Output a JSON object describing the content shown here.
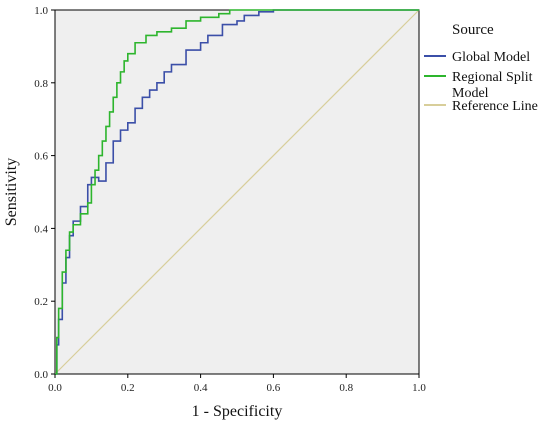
{
  "chart_data": {
    "type": "line",
    "title": "",
    "xlabel": "1 - Specificity",
    "ylabel": "Sensitivity",
    "xlim": [
      0,
      1
    ],
    "ylim": [
      0,
      1
    ],
    "x_ticks": [
      "0.0",
      "0.2",
      "0.4",
      "0.6",
      "0.8",
      "1.0"
    ],
    "y_ticks": [
      "0.0",
      "0.2",
      "0.4",
      "0.6",
      "0.8",
      "1.0"
    ],
    "grid": false,
    "background": "#efefef",
    "legend": {
      "title": "Source",
      "placement": "right"
    },
    "series": [
      {
        "name": "Global Model",
        "color": "#3b4fa8",
        "step": true,
        "points": [
          [
            0.0,
            0.0
          ],
          [
            0.005,
            0.08
          ],
          [
            0.01,
            0.15
          ],
          [
            0.02,
            0.25
          ],
          [
            0.03,
            0.32
          ],
          [
            0.04,
            0.38
          ],
          [
            0.05,
            0.42
          ],
          [
            0.07,
            0.46
          ],
          [
            0.09,
            0.52
          ],
          [
            0.1,
            0.54
          ],
          [
            0.12,
            0.53
          ],
          [
            0.14,
            0.58
          ],
          [
            0.16,
            0.64
          ],
          [
            0.18,
            0.67
          ],
          [
            0.2,
            0.69
          ],
          [
            0.22,
            0.73
          ],
          [
            0.24,
            0.76
          ],
          [
            0.26,
            0.78
          ],
          [
            0.28,
            0.8
          ],
          [
            0.3,
            0.83
          ],
          [
            0.32,
            0.85
          ],
          [
            0.36,
            0.89
          ],
          [
            0.4,
            0.91
          ],
          [
            0.42,
            0.93
          ],
          [
            0.46,
            0.96
          ],
          [
            0.5,
            0.97
          ],
          [
            0.52,
            0.985
          ],
          [
            0.56,
            0.995
          ],
          [
            0.6,
            1.0
          ],
          [
            1.0,
            1.0
          ]
        ]
      },
      {
        "name": "Regional Split Model",
        "color": "#2db52d",
        "step": true,
        "points": [
          [
            0.0,
            0.0
          ],
          [
            0.005,
            0.1
          ],
          [
            0.01,
            0.18
          ],
          [
            0.02,
            0.28
          ],
          [
            0.03,
            0.34
          ],
          [
            0.04,
            0.39
          ],
          [
            0.05,
            0.41
          ],
          [
            0.07,
            0.44
          ],
          [
            0.09,
            0.47
          ],
          [
            0.1,
            0.52
          ],
          [
            0.11,
            0.56
          ],
          [
            0.12,
            0.6
          ],
          [
            0.13,
            0.64
          ],
          [
            0.14,
            0.68
          ],
          [
            0.15,
            0.72
          ],
          [
            0.16,
            0.76
          ],
          [
            0.17,
            0.8
          ],
          [
            0.18,
            0.83
          ],
          [
            0.19,
            0.86
          ],
          [
            0.2,
            0.88
          ],
          [
            0.22,
            0.91
          ],
          [
            0.25,
            0.93
          ],
          [
            0.28,
            0.94
          ],
          [
            0.32,
            0.95
          ],
          [
            0.36,
            0.97
          ],
          [
            0.4,
            0.98
          ],
          [
            0.45,
            0.99
          ],
          [
            0.48,
            1.0
          ],
          [
            1.0,
            1.0
          ]
        ]
      },
      {
        "name": "Reference Line",
        "color": "#d8ce9a",
        "step": false,
        "points": [
          [
            0.0,
            0.0
          ],
          [
            1.0,
            1.0
          ]
        ]
      }
    ]
  }
}
